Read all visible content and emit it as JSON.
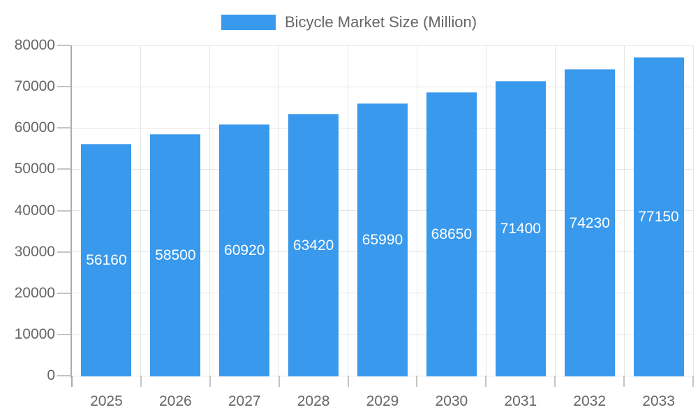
{
  "legend": {
    "label": "Bicycle Market Size (Million)"
  },
  "colors": {
    "bar": "#3999EC",
    "grid": "#E6E6E6",
    "axis": "#ABABAB",
    "tick": "#C4C4C4",
    "text": "#666666",
    "data_label": "#FFFFFF",
    "background": "#FFFFFF"
  },
  "chart_data": {
    "type": "bar",
    "title": "Bicycle Market Size (Million)",
    "categories": [
      "2025",
      "2026",
      "2027",
      "2028",
      "2029",
      "2030",
      "2031",
      "2032",
      "2033"
    ],
    "values": [
      56160,
      58500,
      60920,
      63420,
      65990,
      68650,
      71400,
      74230,
      77150
    ],
    "xlabel": "",
    "ylabel": "",
    "ylim": [
      0,
      80000
    ],
    "ytick_step": 10000,
    "ytick_labels": [
      "0",
      "10000",
      "20000",
      "30000",
      "40000",
      "50000",
      "60000",
      "70000",
      "80000"
    ],
    "grid": true,
    "legend_position": "top-center",
    "data_labels_position": "inside-center"
  }
}
